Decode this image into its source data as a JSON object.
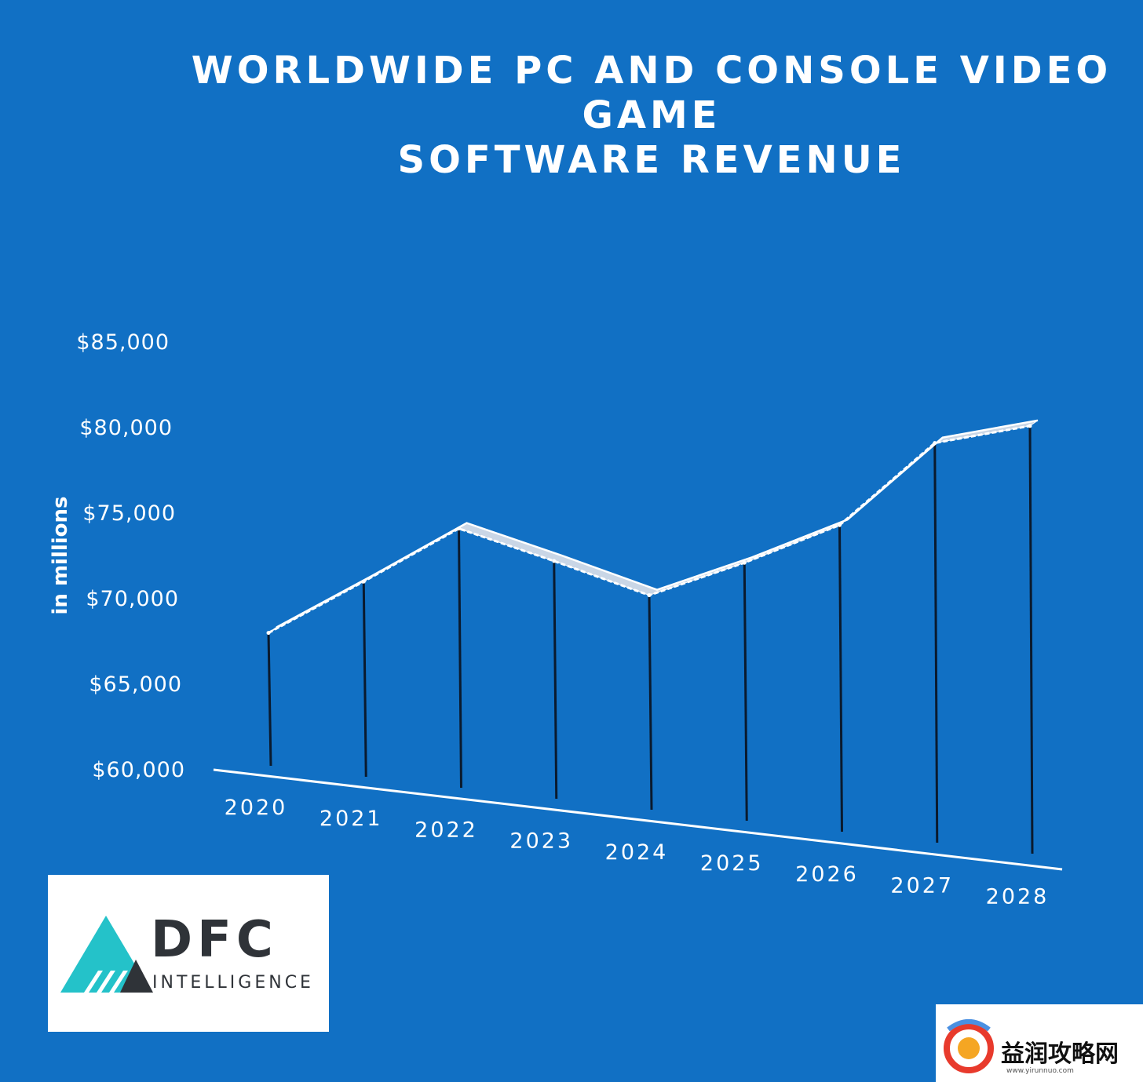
{
  "chart_data": {
    "type": "line",
    "title_lines": [
      "WORLDWIDE PC AND CONSOLE VIDEO",
      "GAME",
      "SOFTWARE REVENUE"
    ],
    "ylabel": "in millions",
    "xlabel": "",
    "categories": [
      "2020",
      "2021",
      "2022",
      "2023",
      "2024",
      "2025",
      "2026",
      "2027",
      "2028"
    ],
    "values": [
      68000,
      71000,
      74100,
      72200,
      70200,
      72100,
      74300,
      79100,
      80100
    ],
    "yticks": [
      "$60,000",
      "$65,000",
      "$70,000",
      "$75,000",
      "$80,000",
      "$85,000"
    ],
    "ytick_values": [
      60000,
      65000,
      70000,
      75000,
      80000,
      85000
    ],
    "ylim": [
      60000,
      85000
    ],
    "grid": false,
    "legend": "none",
    "style": "3d-ribbon line with drop lines",
    "colors": {
      "background": "#1170c4",
      "line": "#ffffff",
      "drop_lines": "#0a1a2e"
    }
  },
  "logo": {
    "name": "DFC",
    "subtitle": "INTELLIGENCE",
    "icon": "triangle-logo-icon"
  },
  "watermark": {
    "text": "益润攻略网",
    "url": "www.yirunnuo.com",
    "icon": "swirl-logo-icon"
  }
}
